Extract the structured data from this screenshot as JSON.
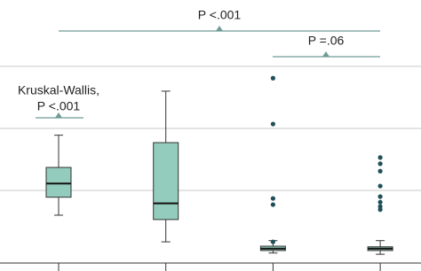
{
  "chart_data": {
    "type": "box",
    "categories": [
      null,
      null,
      null,
      null
    ],
    "ylim": [
      -0.15,
      4.07
    ],
    "yticks": [
      1,
      2,
      3
    ],
    "grid": true,
    "color": "#93cbbd",
    "outlier_color": "#1f4f5a",
    "boxes": [
      {
        "whisker_low": 0.6,
        "q1": 0.89,
        "median": 1.11,
        "q3": 1.37,
        "whisker_high": 1.89,
        "outliers": []
      },
      {
        "whisker_low": 0.17,
        "q1": 0.53,
        "median": 0.79,
        "q3": 1.77,
        "whisker_high": 2.6,
        "outliers": []
      },
      {
        "whisker_low": -0.01,
        "q1": 0.03,
        "median": 0.06,
        "q3": 0.1,
        "whisker_high": 0.19,
        "outliers": [
          2.81,
          2.07,
          0.87,
          0.77,
          0.17
        ]
      },
      {
        "whisker_low": -0.03,
        "q1": 0.03,
        "median": 0.06,
        "q3": 0.09,
        "whisker_high": 0.19,
        "outliers": [
          1.53,
          1.43,
          1.31,
          1.07,
          0.9,
          0.81,
          0.74,
          0.69
        ]
      }
    ],
    "annotations": [
      {
        "lines": [
          "Kruskal-Wallis,",
          "P <.001"
        ]
      },
      {
        "lines": [
          "P <.001"
        ]
      },
      {
        "lines": [
          "P =.06"
        ]
      }
    ]
  }
}
